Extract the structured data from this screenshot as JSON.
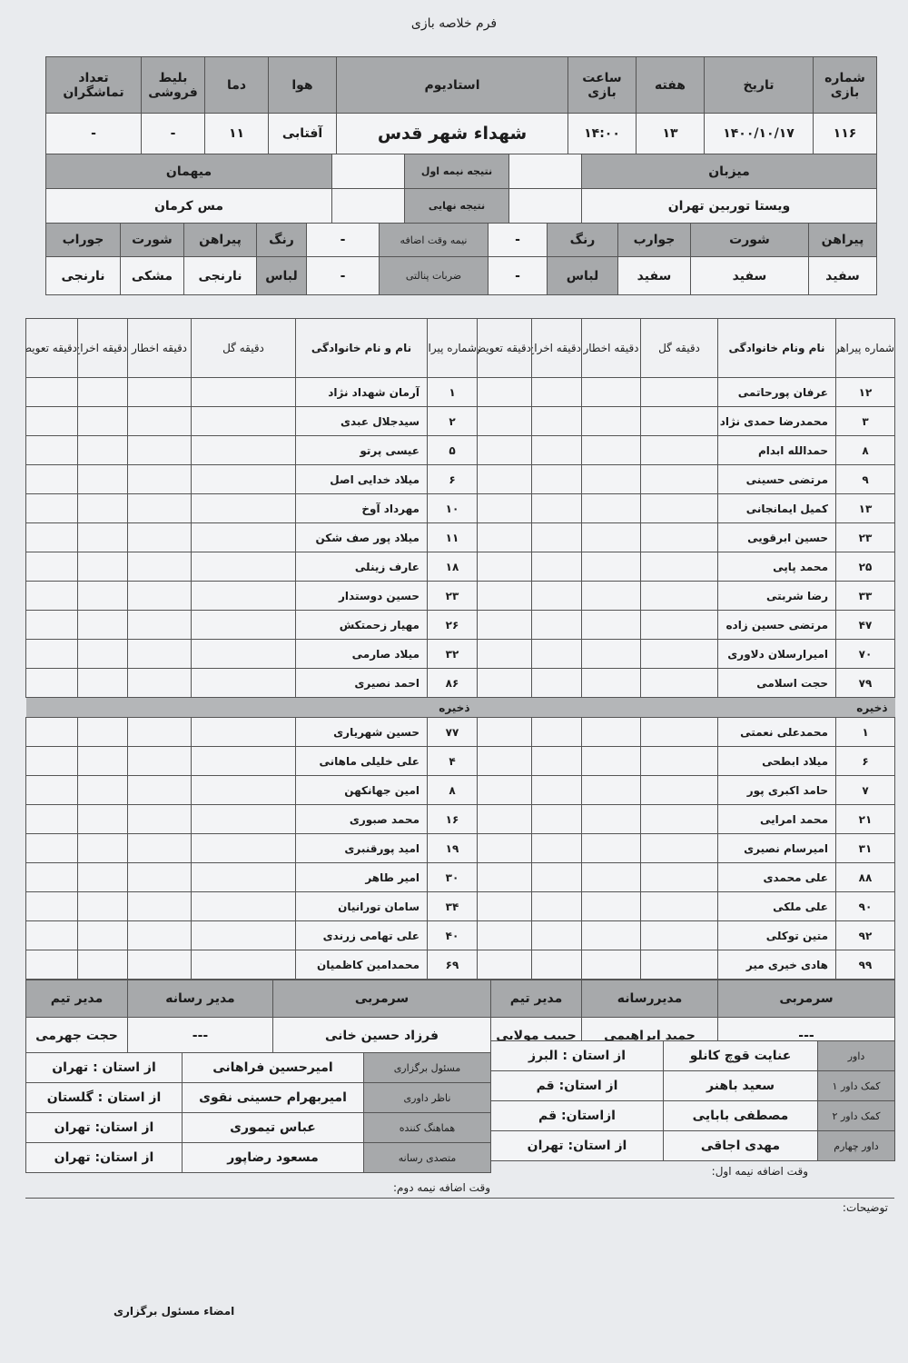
{
  "title": "فرم خلاصه بازی",
  "header": {
    "labels": {
      "match_no": "شماره بازی",
      "date": "تاریخ",
      "week": "هفته",
      "time": "ساعت بازی",
      "stadium": "استادیوم",
      "weather": "هوا",
      "temp": "دما",
      "tickets": "بلیط فروشی",
      "spectators": "تعداد تماشگران"
    },
    "values": {
      "match_no": "۱۱۶",
      "date": "۱۴۰۰/۱۰/۱۷",
      "week": "۱۳",
      "time": "۱۴:۰۰",
      "stadium": "شهداء شهر قدس",
      "weather": "آفتابی",
      "temp": "۱۱",
      "tickets": "-",
      "spectators": "-"
    },
    "host_label": "میزبان",
    "guest_label": "میهمان",
    "host": "ویستا توربین تهران",
    "guest": "مس کرمان",
    "first_half": "نتیجه نیمه اول",
    "final": "نتیجه نهایی",
    "extra": "نیمه وقت اضافه",
    "penalties": "ضربات پنالتی",
    "dash": "-",
    "color": "رنگ",
    "kit": "لباس",
    "host_kit": {
      "shirt_l": "پیراهن",
      "shorts_l": "شورت",
      "socks_l": "جوارب",
      "shirt": "سفید",
      "shorts": "سفید",
      "socks": "سفید"
    },
    "guest_kit": {
      "shirt_l": "پیراهن",
      "shorts_l": "شورت",
      "socks_l": "جوراب",
      "shirt": "نارنجی",
      "shorts": "مشکی",
      "socks": "نارنجی"
    }
  },
  "players": {
    "host_headers": [
      "شماره پیراهن",
      "نام ونام خانوادگی",
      "دقیقه گل",
      "دقیقه اخطار",
      "دقیقه اخراج",
      "دقیقه تعویض"
    ],
    "guest_headers": [
      "شماره پیراهن",
      "نام و نام خانوادگی",
      "دقیقه گل",
      "دقیقه اخطار",
      "دقیقه اخراج",
      "دقیقه تعویض"
    ],
    "reserve_label": "ذخیره",
    "host_starters": [
      [
        "۱۲",
        "عرفان پورحاتمی"
      ],
      [
        "۳",
        "محمدرضا حمدی نژاد"
      ],
      [
        "۸",
        "حمدالله ابدام"
      ],
      [
        "۹",
        "مرتضی حسینی"
      ],
      [
        "۱۳",
        "کمیل ایمانجانی"
      ],
      [
        "۲۳",
        "حسین ابرقویی"
      ],
      [
        "۲۵",
        "محمد پاپی"
      ],
      [
        "۳۳",
        "رضا شربتی"
      ],
      [
        "۴۷",
        "مرتضی حسین زاده"
      ],
      [
        "۷۰",
        "امیرارسلان دلاوری"
      ],
      [
        "۷۹",
        "حجت اسلامی"
      ]
    ],
    "guest_starters": [
      [
        "۱",
        "آرمان شهداد نژاد"
      ],
      [
        "۲",
        "سیدجلال عبدی"
      ],
      [
        "۵",
        "عیسی پرتو"
      ],
      [
        "۶",
        "میلاد خدایی اصل"
      ],
      [
        "۱۰",
        "مهرداد آوخ"
      ],
      [
        "۱۱",
        "میلاد پور صف شکن"
      ],
      [
        "۱۸",
        "عارف زینلی"
      ],
      [
        "۲۳",
        "حسین دوستدار"
      ],
      [
        "۲۶",
        "مهیار زحمتکش"
      ],
      [
        "۳۲",
        "میلاد صارمی"
      ],
      [
        "۸۶",
        "احمد نصیری"
      ]
    ],
    "host_reserves": [
      [
        "۱",
        "محمدعلی نعمتی"
      ],
      [
        "۶",
        "میلاد ابطحی"
      ],
      [
        "۷",
        "حامد اکبری پور"
      ],
      [
        "۲۱",
        "محمد امرایی"
      ],
      [
        "۳۱",
        "امیرسام نصیری"
      ],
      [
        "۸۸",
        "علی محمدی"
      ],
      [
        "۹۰",
        "علی ملکی"
      ],
      [
        "۹۲",
        "متین توکلی"
      ],
      [
        "۹۹",
        "هادی خیری میر"
      ]
    ],
    "guest_reserves": [
      [
        "۷۷",
        "حسین شهریاری"
      ],
      [
        "۴",
        "علی خلیلی ماهانی"
      ],
      [
        "۸",
        "امین جهانکهن"
      ],
      [
        "۱۶",
        "محمد صبوری"
      ],
      [
        "۱۹",
        "امید پورقنبری"
      ],
      [
        "۳۰",
        "امیر طاهر"
      ],
      [
        "۳۴",
        "سامان تورانیان"
      ],
      [
        "۴۰",
        "علی تهامی زرندی"
      ],
      [
        "۶۹",
        "محمدامین کاظمیان"
      ]
    ]
  },
  "staff": {
    "host": {
      "coach_l": "سرمربی",
      "media_l": "مدیررسانه",
      "manager_l": "مدیر تیم",
      "coach": "---",
      "media": "حمید ابراهیمی",
      "manager": "حبیب مولایی"
    },
    "guest": {
      "coach_l": "سرمربی",
      "media_l": "مدیر رسانه",
      "manager_l": "مدیر تیم",
      "coach": "فرزاد حسین خانی",
      "media": "---",
      "manager": "حجت جهرمی"
    }
  },
  "officials": {
    "referees": [
      [
        "داور",
        "عنایت قوچ کانلو",
        "از استان : البرز"
      ],
      [
        "کمک داور ۱",
        "سعید باهنر",
        "از استان:  قم"
      ],
      [
        "کمک داور ۲",
        "مصطفی بابایی",
        "ازاستان:  قم"
      ],
      [
        "داور چهارم",
        "مهدی اجاقی",
        "از استان: تهران"
      ]
    ],
    "others": [
      [
        "مسئول برگزاری",
        "امیرحسین فراهانی",
        "از استان : تهران"
      ],
      [
        "ناظر داوری",
        "امیربهرام حسینی نقوی",
        "از استان : گلستان"
      ],
      [
        "هماهنگ کننده",
        "عباس تیموری",
        "از استان: تهران"
      ],
      [
        "متصدی رسانه",
        "مسعود رضاپور",
        "از استان: تهران"
      ]
    ],
    "extra1": "وقت اضافه نیمه اول:",
    "extra2": "وقت اضافه نیمه دوم:",
    "notes": "توضیحات:",
    "signature": "امضاء مسئول برگزاری"
  }
}
